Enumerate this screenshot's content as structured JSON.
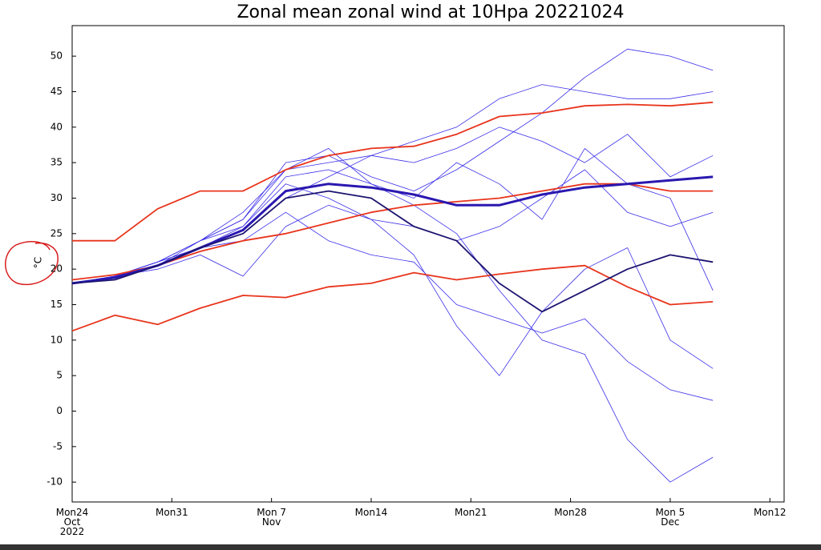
{
  "chart_data": {
    "type": "line",
    "title": "Zonal mean zonal wind at 10Hpa 20221024",
    "y_label": "°C",
    "x": [
      "2022-10-24",
      "2022-10-27",
      "2022-10-30",
      "2022-11-02",
      "2022-11-05",
      "2022-11-08",
      "2022-11-11",
      "2022-11-14",
      "2022-11-17",
      "2022-11-20",
      "2022-11-23",
      "2022-11-26",
      "2022-11-29",
      "2022-12-02",
      "2022-12-05",
      "2022-12-08"
    ],
    "xlim": [
      "2022-10-24",
      "2022-12-13"
    ],
    "xticks": [
      {
        "value": "2022-10-24",
        "label": "Mon24\nOct\n2022"
      },
      {
        "value": "2022-10-31",
        "label": "Mon31"
      },
      {
        "value": "2022-11-07",
        "label": "Mon 7\nNov"
      },
      {
        "value": "2022-11-14",
        "label": "Mon14"
      },
      {
        "value": "2022-11-21",
        "label": "Mon21"
      },
      {
        "value": "2022-11-28",
        "label": "Mon28"
      },
      {
        "value": "2022-12-05",
        "label": "Mon 5\nDec"
      },
      {
        "value": "2022-12-12",
        "label": "Mon12"
      }
    ],
    "ylim": [
      -12.8,
      54.3
    ],
    "yticks": [
      -10,
      -5,
      0,
      5,
      10,
      15,
      20,
      25,
      30,
      35,
      40,
      45,
      50
    ],
    "series": [
      {
        "color": "#3a2ee8",
        "width": 0.8,
        "values": [
          18,
          19,
          21,
          24,
          27,
          35,
          36,
          33,
          31,
          34,
          38,
          42,
          47,
          51,
          50,
          48
        ]
      },
      {
        "color": "#3a2ee8",
        "width": 0.8,
        "values": [
          18,
          19,
          21,
          24,
          26,
          32,
          30,
          27,
          22,
          12,
          5,
          14,
          20,
          23,
          10,
          6
        ]
      },
      {
        "color": "#3a2ee8",
        "width": 0.8,
        "values": [
          18,
          19,
          21,
          23,
          26,
          33,
          34,
          32,
          29,
          25,
          17,
          10,
          8,
          -4,
          -10,
          -6.5
        ]
      },
      {
        "color": "#3a2ee8",
        "width": 0.8,
        "values": [
          18,
          19,
          20.5,
          24,
          27,
          34,
          35,
          36,
          38,
          40,
          44,
          46,
          45,
          44,
          44,
          45
        ]
      },
      {
        "color": "#3a2ee8",
        "width": 0.8,
        "values": [
          18,
          19,
          21,
          23,
          24,
          28,
          24,
          22,
          21,
          15,
          13,
          11,
          13,
          7,
          3,
          1.5
        ]
      },
      {
        "color": "#3a2ee8",
        "width": 0.8,
        "values": [
          18,
          19,
          21,
          23,
          25,
          30,
          33,
          36,
          35,
          37,
          40,
          38,
          35,
          39,
          33,
          36
        ]
      },
      {
        "color": "#3a2ee8",
        "width": 0.8,
        "values": [
          18,
          19,
          20,
          22,
          19,
          26,
          29,
          27,
          26,
          24,
          26,
          30,
          34,
          28,
          26,
          28
        ]
      },
      {
        "color": "#3a2ee8",
        "width": 0.8,
        "values": [
          18,
          19,
          21,
          24,
          28,
          34,
          37,
          32,
          30,
          35,
          32,
          27,
          37,
          32,
          30,
          17
        ]
      },
      {
        "color": "#e8341c",
        "width": 1.8,
        "values": [
          24,
          24,
          28.5,
          31,
          31,
          34,
          36,
          37,
          37.3,
          39,
          41.5,
          42,
          43,
          43.2,
          43,
          43.5
        ]
      },
      {
        "color": "#e8341c",
        "width": 1.8,
        "values": [
          18.5,
          19.2,
          20.5,
          22.5,
          24,
          25,
          26.5,
          28,
          29,
          29.5,
          30,
          31,
          32,
          32,
          31,
          31
        ]
      },
      {
        "color": "#e8341c",
        "width": 1.8,
        "values": [
          11.3,
          13.5,
          12.2,
          14.5,
          16.3,
          16,
          17.5,
          18,
          19.5,
          18.5,
          19.3,
          20,
          20.5,
          17.5,
          15,
          15.4
        ]
      },
      {
        "color": "#2a18b0",
        "width": 3,
        "values": [
          18,
          18.8,
          20.5,
          23,
          25.5,
          31,
          32,
          31.5,
          30.5,
          29,
          29,
          30.5,
          31.5,
          32,
          32.5,
          33
        ]
      },
      {
        "color": "#1c1470",
        "width": 1.8,
        "values": [
          18,
          18.5,
          20.5,
          23,
          25,
          30,
          31,
          30,
          26,
          24,
          18,
          14,
          17,
          20,
          22,
          21
        ]
      }
    ]
  }
}
